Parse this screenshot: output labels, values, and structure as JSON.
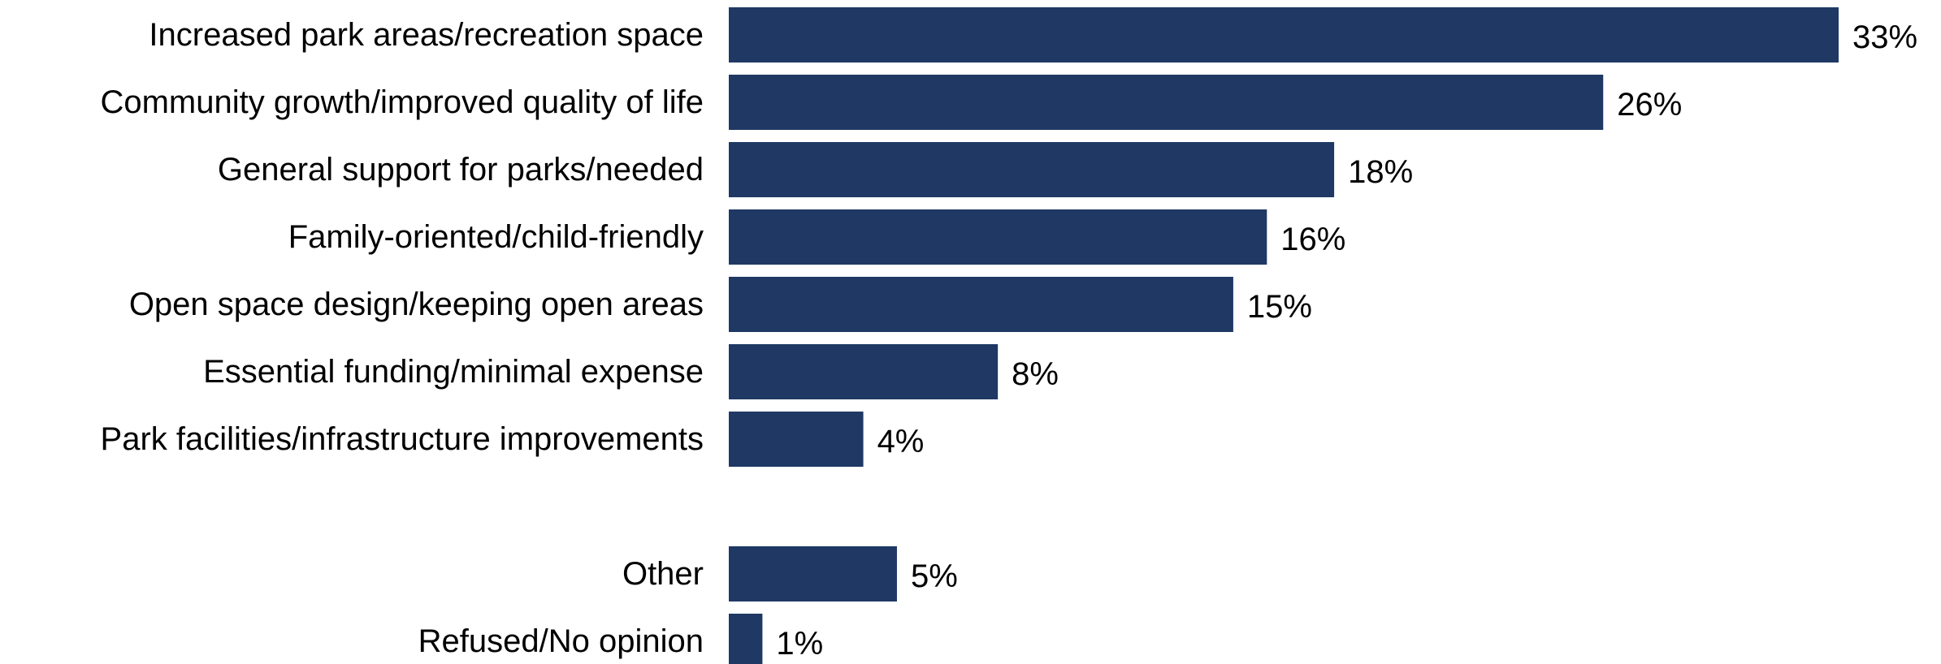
{
  "chart_data": {
    "type": "bar",
    "orientation": "horizontal",
    "categories": [
      "Increased park areas/recreation space",
      "Community growth/improved quality of life",
      "General support for parks/needed",
      "Family-oriented/child-friendly",
      "Open space design/keeping open areas",
      "Essential funding/minimal expense",
      "Park facilities/infrastructure improvements",
      "Other",
      "Refused/No opinion"
    ],
    "values": [
      33,
      26,
      18,
      16,
      15,
      8,
      4,
      5,
      1
    ],
    "value_labels": [
      "33%",
      "26%",
      "18%",
      "16%",
      "15%",
      "8%",
      "4%",
      "5%",
      "1%"
    ],
    "unit": "%",
    "xlim": [
      0,
      33
    ],
    "gap_before": "Other",
    "grid": false,
    "legend": "none",
    "bar_color": "#1F3864"
  }
}
